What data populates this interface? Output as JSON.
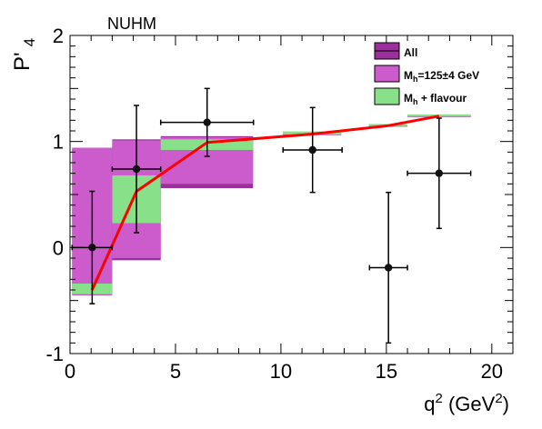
{
  "chart_data": {
    "type": "scatter",
    "title": "NUHM",
    "xlabel": "q",
    "xlabel_sup": "2",
    "xlabel_unit_open": " (GeV",
    "xlabel_unit_sup": "2",
    "xlabel_unit_close": ")",
    "ylabel_main": "P",
    "ylabel_prime": "'",
    "ylabel_sub": "4",
    "xlim": [
      0,
      21
    ],
    "ylim": [
      -1,
      2
    ],
    "x_ticks": [
      0,
      5,
      10,
      15,
      20
    ],
    "y_ticks": [
      -1,
      0,
      1,
      2
    ],
    "grid": false,
    "legend_position": "top-right",
    "legend": [
      {
        "label": "All",
        "color": "#9b2f9b"
      },
      {
        "label_main": "M",
        "label_sub": "h",
        "label_rest": "=125±4 GeV",
        "color": "#cc5ccc"
      },
      {
        "label_main": "M",
        "label_sub": "h",
        "label_rest": " + flavour",
        "color": "#88e088"
      }
    ],
    "bins": [
      {
        "x0": 0.1,
        "x1": 2.0,
        "all": [
          -0.45,
          0.94
        ],
        "mh": [
          -0.45,
          0.94
        ],
        "flav": [
          -0.44,
          -0.34
        ]
      },
      {
        "x0": 2.0,
        "x1": 4.3,
        "all": [
          -0.12,
          1.02
        ],
        "mh": [
          -0.1,
          1.01
        ],
        "flav": [
          0.23,
          0.68
        ]
      },
      {
        "x0": 4.3,
        "x1": 8.68,
        "all": [
          0.56,
          1.05
        ],
        "mh": [
          0.6,
          1.04
        ],
        "flav": [
          0.92,
          1.02
        ]
      },
      {
        "x0": 10.09,
        "x1": 12.86,
        "all": [
          1.06,
          1.09
        ],
        "mh": [
          1.065,
          1.085
        ],
        "flav": [
          1.065,
          1.095
        ]
      },
      {
        "x0": 14.18,
        "x1": 16.0,
        "all": [
          1.14,
          1.16
        ],
        "mh": [
          1.145,
          1.16
        ],
        "flav": [
          1.145,
          1.165
        ]
      },
      {
        "x0": 16.0,
        "x1": 19.0,
        "all": [
          1.23,
          1.25
        ],
        "mh": [
          1.235,
          1.25
        ],
        "flav": [
          1.235,
          1.255
        ]
      }
    ],
    "prediction_line": {
      "color": "#ff0000",
      "x": [
        1.05,
        3.15,
        6.5,
        11.5,
        15.1,
        17.5
      ],
      "y": [
        -0.4,
        0.53,
        0.99,
        1.07,
        1.15,
        1.24
      ]
    },
    "measurements": [
      {
        "x": 1.05,
        "y": 0.0,
        "xerr": 0.95,
        "yerr_lo": 0.53,
        "yerr_hi": 0.53
      },
      {
        "x": 3.15,
        "y": 0.74,
        "xerr": 1.15,
        "yerr_lo": 0.6,
        "yerr_hi": 0.6
      },
      {
        "x": 6.5,
        "y": 1.18,
        "xerr": 2.2,
        "yerr_lo": 0.32,
        "yerr_hi": 0.32
      },
      {
        "x": 11.5,
        "y": 0.92,
        "xerr": 1.4,
        "yerr_lo": 0.4,
        "yerr_hi": 0.4
      },
      {
        "x": 15.1,
        "y": -0.19,
        "xerr": 0.9,
        "yerr_lo": 0.71,
        "yerr_hi": 0.71
      },
      {
        "x": 17.5,
        "y": 0.7,
        "xerr": 1.5,
        "yerr_lo": 0.52,
        "yerr_hi": 0.52
      }
    ]
  }
}
